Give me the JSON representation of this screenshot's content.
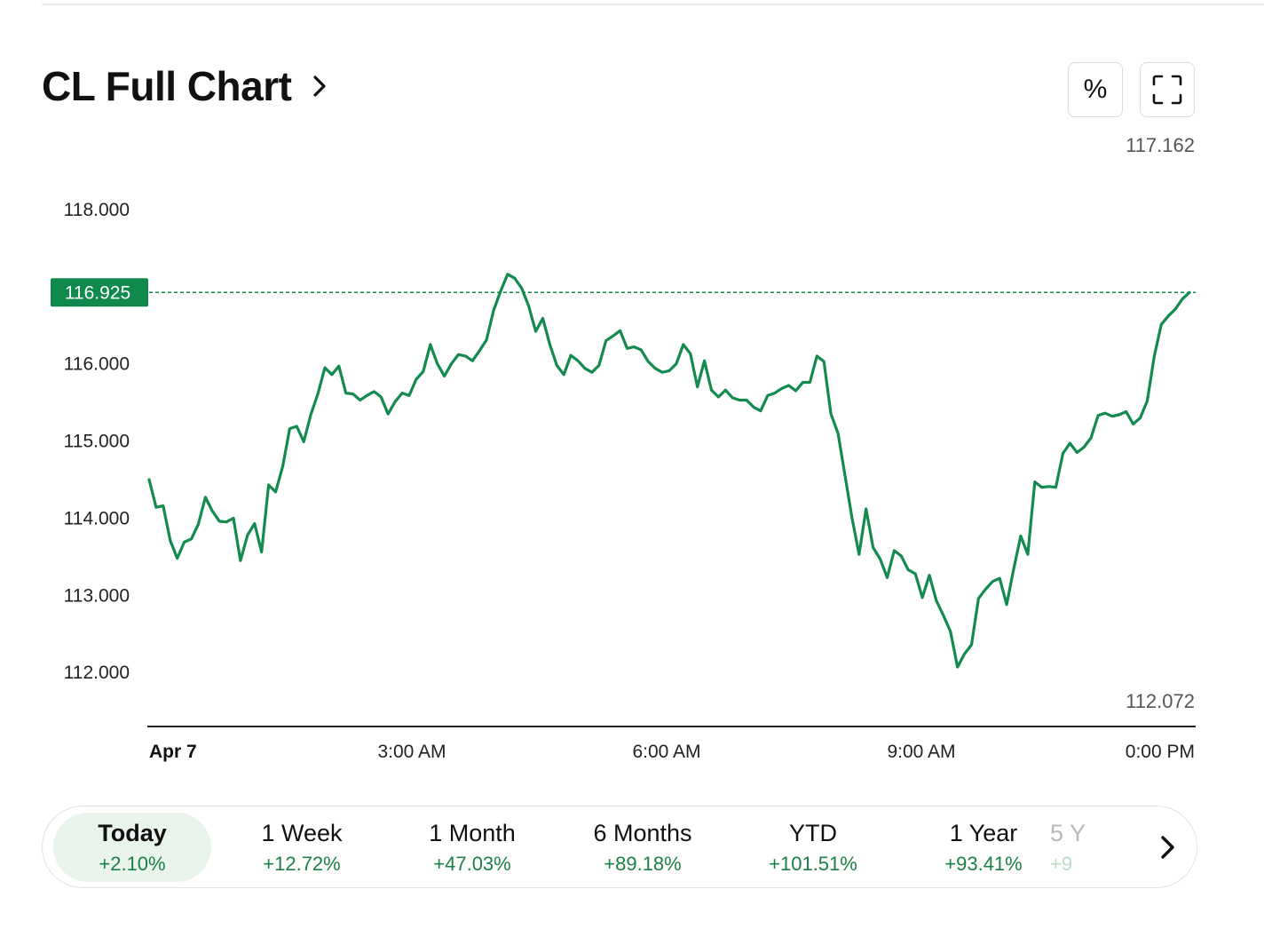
{
  "header": {
    "title": "CL Full Chart"
  },
  "toolbar": {
    "percent_label": "%",
    "fullscreen_icon": "fullscreen-icon"
  },
  "chart_meta": {
    "high_label": "117.162",
    "low_label": "112.072",
    "current_label": "116.925"
  },
  "colors": {
    "line": "#138a4f",
    "accent": "#0f8a4c",
    "positive_text": "#1b7f48"
  },
  "chart_data": {
    "type": "line",
    "title": "",
    "xlabel": "",
    "ylabel": "",
    "ylim": [
      111.3,
      118.85
    ],
    "y_ticks": [
      "118.000",
      "116.000",
      "115.000",
      "114.000",
      "113.000",
      "112.000"
    ],
    "x_ticks": [
      "Apr 7",
      "3:00 AM",
      "6:00 AM",
      "9:00 AM",
      "0:00 PM"
    ],
    "x_start": "00:00",
    "x_end": "12:20",
    "high": 117.162,
    "low": 112.072,
    "current": 116.925,
    "grid": false,
    "series": [
      {
        "name": "",
        "points": [
          [
            "00:00",
            114.5
          ],
          [
            "00:05",
            114.14
          ],
          [
            "00:10",
            114.16
          ],
          [
            "00:15",
            113.71
          ],
          [
            "00:20",
            113.48
          ],
          [
            "00:25",
            113.69
          ],
          [
            "00:30",
            113.73
          ],
          [
            "00:35",
            113.92
          ],
          [
            "00:40",
            114.27
          ],
          [
            "00:45",
            114.09
          ],
          [
            "00:50",
            113.96
          ],
          [
            "00:55",
            113.95
          ],
          [
            "01:00",
            114.0
          ],
          [
            "01:05",
            113.45
          ],
          [
            "01:10",
            113.78
          ],
          [
            "01:15",
            113.93
          ],
          [
            "01:20",
            113.56
          ],
          [
            "01:25",
            114.43
          ],
          [
            "01:30",
            114.34
          ],
          [
            "01:35",
            114.67
          ],
          [
            "01:40",
            115.16
          ],
          [
            "01:45",
            115.19
          ],
          [
            "01:50",
            114.99
          ],
          [
            "01:55",
            115.34
          ],
          [
            "02:00",
            115.61
          ],
          [
            "02:05",
            115.95
          ],
          [
            "02:10",
            115.86
          ],
          [
            "02:15",
            115.97
          ],
          [
            "02:20",
            115.62
          ],
          [
            "02:25",
            115.61
          ],
          [
            "02:30",
            115.53
          ],
          [
            "02:35",
            115.59
          ],
          [
            "02:40",
            115.64
          ],
          [
            "02:45",
            115.57
          ],
          [
            "02:50",
            115.35
          ],
          [
            "02:55",
            115.51
          ],
          [
            "03:00",
            115.62
          ],
          [
            "03:05",
            115.59
          ],
          [
            "03:10",
            115.8
          ],
          [
            "03:15",
            115.9
          ],
          [
            "03:20",
            116.25
          ],
          [
            "03:25",
            116.0
          ],
          [
            "03:30",
            115.84
          ],
          [
            "03:35",
            116.0
          ],
          [
            "03:40",
            116.12
          ],
          [
            "03:45",
            116.1
          ],
          [
            "03:50",
            116.04
          ],
          [
            "03:55",
            116.17
          ],
          [
            "04:00",
            116.31
          ],
          [
            "04:05",
            116.69
          ],
          [
            "04:10",
            116.94
          ],
          [
            "04:15",
            117.16
          ],
          [
            "04:20",
            117.11
          ],
          [
            "04:25",
            116.98
          ],
          [
            "04:30",
            116.75
          ],
          [
            "04:35",
            116.42
          ],
          [
            "04:40",
            116.59
          ],
          [
            "04:45",
            116.25
          ],
          [
            "04:50",
            115.98
          ],
          [
            "04:55",
            115.86
          ],
          [
            "05:00",
            116.11
          ],
          [
            "05:05",
            116.04
          ],
          [
            "05:10",
            115.94
          ],
          [
            "05:15",
            115.89
          ],
          [
            "05:20",
            115.98
          ],
          [
            "05:25",
            116.3
          ],
          [
            "05:30",
            116.36
          ],
          [
            "05:35",
            116.43
          ],
          [
            "05:40",
            116.2
          ],
          [
            "05:45",
            116.22
          ],
          [
            "05:50",
            116.18
          ],
          [
            "05:55",
            116.03
          ],
          [
            "06:00",
            115.94
          ],
          [
            "06:05",
            115.89
          ],
          [
            "06:10",
            115.91
          ],
          [
            "06:15",
            116.0
          ],
          [
            "06:20",
            116.25
          ],
          [
            "06:25",
            116.13
          ],
          [
            "06:30",
            115.7
          ],
          [
            "06:35",
            116.04
          ],
          [
            "06:40",
            115.66
          ],
          [
            "06:45",
            115.57
          ],
          [
            "06:50",
            115.66
          ],
          [
            "06:55",
            115.56
          ],
          [
            "07:00",
            115.53
          ],
          [
            "07:05",
            115.53
          ],
          [
            "07:10",
            115.44
          ],
          [
            "07:15",
            115.39
          ],
          [
            "07:20",
            115.59
          ],
          [
            "07:25",
            115.62
          ],
          [
            "07:30",
            115.68
          ],
          [
            "07:35",
            115.72
          ],
          [
            "07:40",
            115.65
          ],
          [
            "07:45",
            115.76
          ],
          [
            "07:50",
            115.76
          ],
          [
            "07:55",
            116.1
          ],
          [
            "08:00",
            116.03
          ],
          [
            "08:05",
            115.35
          ],
          [
            "08:10",
            115.1
          ],
          [
            "08:15",
            114.55
          ],
          [
            "08:20",
            114.0
          ],
          [
            "08:25",
            113.53
          ],
          [
            "08:30",
            114.12
          ],
          [
            "08:35",
            113.62
          ],
          [
            "08:40",
            113.47
          ],
          [
            "08:45",
            113.23
          ],
          [
            "08:50",
            113.58
          ],
          [
            "08:55",
            113.51
          ],
          [
            "09:00",
            113.33
          ],
          [
            "09:05",
            113.28
          ],
          [
            "09:10",
            112.97
          ],
          [
            "09:15",
            113.26
          ],
          [
            "09:20",
            112.93
          ],
          [
            "09:25",
            112.74
          ],
          [
            "09:30",
            112.53
          ],
          [
            "09:35",
            112.07
          ],
          [
            "09:40",
            112.24
          ],
          [
            "09:45",
            112.36
          ],
          [
            "09:50",
            112.96
          ],
          [
            "09:55",
            113.08
          ],
          [
            "10:00",
            113.18
          ],
          [
            "10:05",
            113.22
          ],
          [
            "10:10",
            112.88
          ],
          [
            "10:15",
            113.34
          ],
          [
            "10:20",
            113.77
          ],
          [
            "10:25",
            113.53
          ],
          [
            "10:30",
            114.47
          ],
          [
            "10:35",
            114.4
          ],
          [
            "10:40",
            114.41
          ],
          [
            "10:45",
            114.4
          ],
          [
            "10:50",
            114.84
          ],
          [
            "10:55",
            114.97
          ],
          [
            "11:00",
            114.85
          ],
          [
            "11:05",
            114.92
          ],
          [
            "11:10",
            115.04
          ],
          [
            "11:15",
            115.33
          ],
          [
            "11:20",
            115.36
          ],
          [
            "11:25",
            115.32
          ],
          [
            "11:30",
            115.34
          ],
          [
            "11:35",
            115.38
          ],
          [
            "11:40",
            115.22
          ],
          [
            "11:45",
            115.3
          ],
          [
            "11:50",
            115.52
          ],
          [
            "11:55",
            116.1
          ],
          [
            "12:00",
            116.51
          ],
          [
            "12:05",
            116.62
          ],
          [
            "12:10",
            116.71
          ],
          [
            "12:15",
            116.84
          ],
          [
            "12:20",
            116.925
          ]
        ]
      }
    ]
  },
  "periods": {
    "items": [
      {
        "label": "Today",
        "change": "+2.10%"
      },
      {
        "label": "1 Week",
        "change": "+12.72%"
      },
      {
        "label": "1 Month",
        "change": "+47.03%"
      },
      {
        "label": "6 Months",
        "change": "+89.18%"
      },
      {
        "label": "YTD",
        "change": "+101.51%"
      },
      {
        "label": "1 Year",
        "change": "+93.41%"
      },
      {
        "label": "5 Y",
        "change": "+9"
      }
    ]
  }
}
